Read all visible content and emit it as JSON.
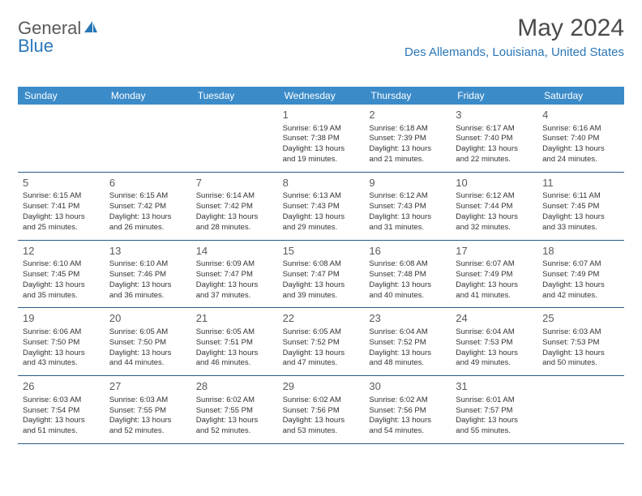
{
  "brand": {
    "text1": "General",
    "text2": "Blue",
    "text1_color": "#5a5a5a",
    "text2_color": "#2a77b8"
  },
  "title": "May 2024",
  "location": "Des Allemands, Louisiana, United States",
  "header_bg": "#3b8bc9",
  "header_text_color": "#ffffff",
  "row_border_color": "#2a5a8a",
  "day_headers": [
    "Sunday",
    "Monday",
    "Tuesday",
    "Wednesday",
    "Thursday",
    "Friday",
    "Saturday"
  ],
  "weeks": [
    [
      {
        "num": "",
        "lines": []
      },
      {
        "num": "",
        "lines": []
      },
      {
        "num": "",
        "lines": []
      },
      {
        "num": "1",
        "lines": [
          "Sunrise: 6:19 AM",
          "Sunset: 7:38 PM",
          "Daylight: 13 hours",
          "and 19 minutes."
        ]
      },
      {
        "num": "2",
        "lines": [
          "Sunrise: 6:18 AM",
          "Sunset: 7:39 PM",
          "Daylight: 13 hours",
          "and 21 minutes."
        ]
      },
      {
        "num": "3",
        "lines": [
          "Sunrise: 6:17 AM",
          "Sunset: 7:40 PM",
          "Daylight: 13 hours",
          "and 22 minutes."
        ]
      },
      {
        "num": "4",
        "lines": [
          "Sunrise: 6:16 AM",
          "Sunset: 7:40 PM",
          "Daylight: 13 hours",
          "and 24 minutes."
        ]
      }
    ],
    [
      {
        "num": "5",
        "lines": [
          "Sunrise: 6:15 AM",
          "Sunset: 7:41 PM",
          "Daylight: 13 hours",
          "and 25 minutes."
        ]
      },
      {
        "num": "6",
        "lines": [
          "Sunrise: 6:15 AM",
          "Sunset: 7:42 PM",
          "Daylight: 13 hours",
          "and 26 minutes."
        ]
      },
      {
        "num": "7",
        "lines": [
          "Sunrise: 6:14 AM",
          "Sunset: 7:42 PM",
          "Daylight: 13 hours",
          "and 28 minutes."
        ]
      },
      {
        "num": "8",
        "lines": [
          "Sunrise: 6:13 AM",
          "Sunset: 7:43 PM",
          "Daylight: 13 hours",
          "and 29 minutes."
        ]
      },
      {
        "num": "9",
        "lines": [
          "Sunrise: 6:12 AM",
          "Sunset: 7:43 PM",
          "Daylight: 13 hours",
          "and 31 minutes."
        ]
      },
      {
        "num": "10",
        "lines": [
          "Sunrise: 6:12 AM",
          "Sunset: 7:44 PM",
          "Daylight: 13 hours",
          "and 32 minutes."
        ]
      },
      {
        "num": "11",
        "lines": [
          "Sunrise: 6:11 AM",
          "Sunset: 7:45 PM",
          "Daylight: 13 hours",
          "and 33 minutes."
        ]
      }
    ],
    [
      {
        "num": "12",
        "lines": [
          "Sunrise: 6:10 AM",
          "Sunset: 7:45 PM",
          "Daylight: 13 hours",
          "and 35 minutes."
        ]
      },
      {
        "num": "13",
        "lines": [
          "Sunrise: 6:10 AM",
          "Sunset: 7:46 PM",
          "Daylight: 13 hours",
          "and 36 minutes."
        ]
      },
      {
        "num": "14",
        "lines": [
          "Sunrise: 6:09 AM",
          "Sunset: 7:47 PM",
          "Daylight: 13 hours",
          "and 37 minutes."
        ]
      },
      {
        "num": "15",
        "lines": [
          "Sunrise: 6:08 AM",
          "Sunset: 7:47 PM",
          "Daylight: 13 hours",
          "and 39 minutes."
        ]
      },
      {
        "num": "16",
        "lines": [
          "Sunrise: 6:08 AM",
          "Sunset: 7:48 PM",
          "Daylight: 13 hours",
          "and 40 minutes."
        ]
      },
      {
        "num": "17",
        "lines": [
          "Sunrise: 6:07 AM",
          "Sunset: 7:49 PM",
          "Daylight: 13 hours",
          "and 41 minutes."
        ]
      },
      {
        "num": "18",
        "lines": [
          "Sunrise: 6:07 AM",
          "Sunset: 7:49 PM",
          "Daylight: 13 hours",
          "and 42 minutes."
        ]
      }
    ],
    [
      {
        "num": "19",
        "lines": [
          "Sunrise: 6:06 AM",
          "Sunset: 7:50 PM",
          "Daylight: 13 hours",
          "and 43 minutes."
        ]
      },
      {
        "num": "20",
        "lines": [
          "Sunrise: 6:05 AM",
          "Sunset: 7:50 PM",
          "Daylight: 13 hours",
          "and 44 minutes."
        ]
      },
      {
        "num": "21",
        "lines": [
          "Sunrise: 6:05 AM",
          "Sunset: 7:51 PM",
          "Daylight: 13 hours",
          "and 46 minutes."
        ]
      },
      {
        "num": "22",
        "lines": [
          "Sunrise: 6:05 AM",
          "Sunset: 7:52 PM",
          "Daylight: 13 hours",
          "and 47 minutes."
        ]
      },
      {
        "num": "23",
        "lines": [
          "Sunrise: 6:04 AM",
          "Sunset: 7:52 PM",
          "Daylight: 13 hours",
          "and 48 minutes."
        ]
      },
      {
        "num": "24",
        "lines": [
          "Sunrise: 6:04 AM",
          "Sunset: 7:53 PM",
          "Daylight: 13 hours",
          "and 49 minutes."
        ]
      },
      {
        "num": "25",
        "lines": [
          "Sunrise: 6:03 AM",
          "Sunset: 7:53 PM",
          "Daylight: 13 hours",
          "and 50 minutes."
        ]
      }
    ],
    [
      {
        "num": "26",
        "lines": [
          "Sunrise: 6:03 AM",
          "Sunset: 7:54 PM",
          "Daylight: 13 hours",
          "and 51 minutes."
        ]
      },
      {
        "num": "27",
        "lines": [
          "Sunrise: 6:03 AM",
          "Sunset: 7:55 PM",
          "Daylight: 13 hours",
          "and 52 minutes."
        ]
      },
      {
        "num": "28",
        "lines": [
          "Sunrise: 6:02 AM",
          "Sunset: 7:55 PM",
          "Daylight: 13 hours",
          "and 52 minutes."
        ]
      },
      {
        "num": "29",
        "lines": [
          "Sunrise: 6:02 AM",
          "Sunset: 7:56 PM",
          "Daylight: 13 hours",
          "and 53 minutes."
        ]
      },
      {
        "num": "30",
        "lines": [
          "Sunrise: 6:02 AM",
          "Sunset: 7:56 PM",
          "Daylight: 13 hours",
          "and 54 minutes."
        ]
      },
      {
        "num": "31",
        "lines": [
          "Sunrise: 6:01 AM",
          "Sunset: 7:57 PM",
          "Daylight: 13 hours",
          "and 55 minutes."
        ]
      },
      {
        "num": "",
        "lines": []
      }
    ]
  ]
}
